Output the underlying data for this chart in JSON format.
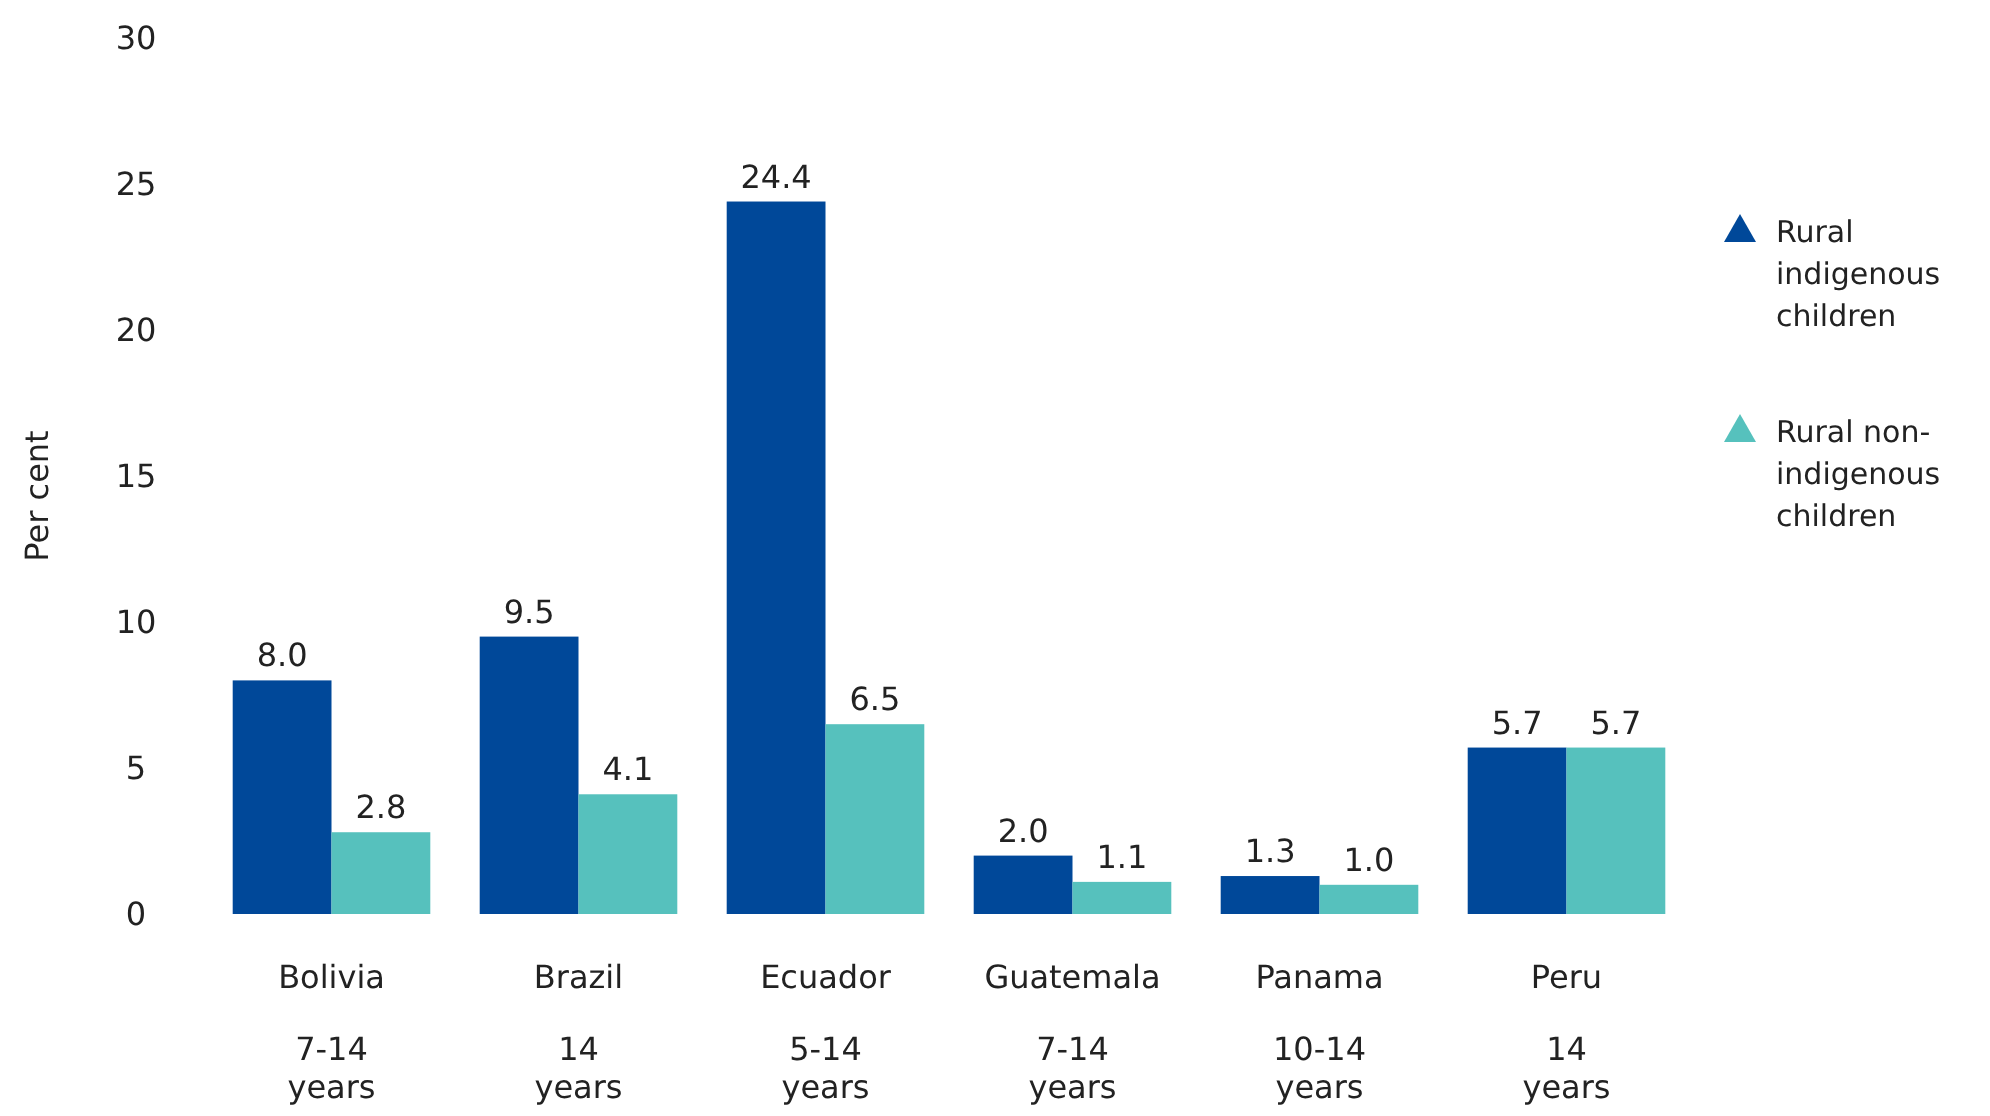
{
  "chart_data": {
    "type": "bar",
    "ylabel": "Per cent",
    "categories": [
      "Bolivia\n7-14\nyears",
      "Brazil\n14\nyears",
      "Ecuador\n5-14\nyears",
      "Guatemala\n7-14\nyears",
      "Panama\n10-14\nyears",
      "Peru\n14\nyears"
    ],
    "series": [
      {
        "name": "Rural indigenous children",
        "color": "#004899",
        "values": [
          8.0,
          9.5,
          24.4,
          2.0,
          1.3,
          5.7
        ],
        "value_labels": [
          "8.0",
          "9.5",
          "24.4",
          "2.0",
          "1.3",
          "5.7"
        ]
      },
      {
        "name": "Rural non-indigenous children",
        "color": "#56c1bd",
        "values": [
          2.8,
          4.1,
          6.5,
          1.1,
          1.0,
          5.7
        ],
        "value_labels": [
          "2.8",
          "4.1",
          "6.5",
          "1.1",
          "1.0",
          "5.7"
        ]
      }
    ],
    "ylim": [
      0,
      30
    ],
    "yticks": [
      0,
      5,
      10,
      15,
      20,
      25,
      30
    ],
    "legend": "right",
    "grid": false
  }
}
